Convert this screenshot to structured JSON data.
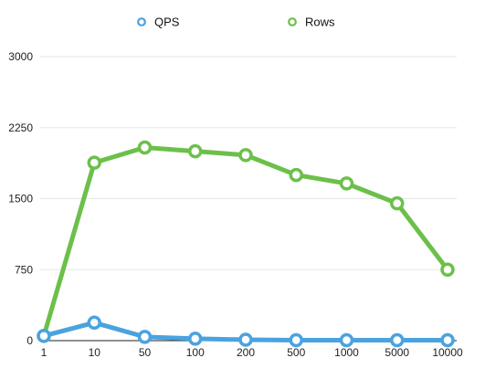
{
  "chart_data": {
    "type": "line",
    "title": "",
    "xlabel": "",
    "ylabel": "",
    "categories": [
      "1",
      "10",
      "50",
      "100",
      "200",
      "500",
      "1000",
      "5000",
      "10000"
    ],
    "ylim": [
      0,
      3000
    ],
    "yticks": [
      "0",
      "750",
      "1500",
      "2250",
      "3000"
    ],
    "grid": true,
    "legend_position": "top",
    "series": [
      {
        "name": "QPS",
        "color": "#4aa3df",
        "values": [
          50,
          190,
          40,
          20,
          10,
          5,
          5,
          5,
          5
        ]
      },
      {
        "name": "Rows",
        "color": "#6cc04a",
        "values": [
          50,
          1880,
          2040,
          2000,
          1960,
          1750,
          1660,
          1450,
          750
        ]
      }
    ]
  }
}
